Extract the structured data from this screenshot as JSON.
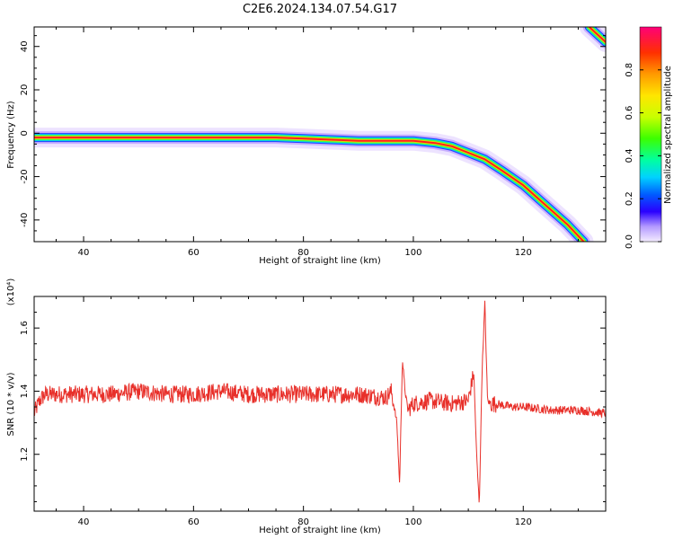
{
  "title": "C2E6.2024.134.07.54.G17",
  "chart_data": [
    {
      "type": "heatmap",
      "xlabel": "Height of straight line (km)",
      "ylabel": "Frequency (Hz)",
      "xlim": [
        31,
        135
      ],
      "ylim": [
        -50,
        49
      ],
      "xticks": [
        40,
        60,
        80,
        100,
        120
      ],
      "yticks": [
        -40,
        -20,
        0,
        20,
        40
      ],
      "ridge": {
        "x": [
          31,
          40,
          50,
          60,
          70,
          75,
          80,
          85,
          90,
          95,
          100,
          104,
          107,
          110,
          113,
          116,
          120,
          124,
          128,
          131
        ],
        "y": [
          -2,
          -2,
          -2,
          -2,
          -2,
          -2,
          -2.5,
          -3,
          -3.5,
          -3.5,
          -3.5,
          -4.5,
          -6,
          -9,
          -12,
          -17,
          -24,
          -33,
          -42,
          -50
        ]
      },
      "ridge2": {
        "x": [
          132,
          135
        ],
        "y": [
          49,
          42
        ]
      },
      "colorbar": {
        "label": "Normalized spectral amplitude",
        "ticks": [
          "0.0",
          "0.2",
          "0.4",
          "0.6",
          "0.8"
        ],
        "range": [
          0,
          1
        ]
      }
    },
    {
      "type": "line",
      "xlabel": "Height of straight line (km)",
      "ylabel": "SNR (10 * v/v)",
      "yscale_label": "(x10⁴)",
      "xlim": [
        31,
        135
      ],
      "ylim": [
        1.02,
        1.7
      ],
      "xticks": [
        40,
        60,
        80,
        100,
        120
      ],
      "yticks": [
        1.2,
        1.4,
        1.6
      ],
      "series": [
        {
          "color": "#e8302a",
          "x": [
            31,
            32,
            33,
            35,
            40,
            45,
            50,
            55,
            60,
            65,
            70,
            75,
            80,
            85,
            90,
            95,
            96,
            97,
            97.5,
            98,
            98.5,
            99,
            100,
            103,
            107,
            110,
            111,
            111.5,
            112,
            112.5,
            113,
            113.5,
            114,
            115,
            118,
            120,
            125,
            130,
            135
          ],
          "y": [
            1.33,
            1.37,
            1.39,
            1.39,
            1.39,
            1.39,
            1.4,
            1.39,
            1.39,
            1.4,
            1.39,
            1.39,
            1.39,
            1.39,
            1.39,
            1.38,
            1.4,
            1.3,
            1.1,
            1.5,
            1.4,
            1.34,
            1.36,
            1.37,
            1.36,
            1.37,
            1.46,
            1.2,
            1.04,
            1.46,
            1.68,
            1.37,
            1.36,
            1.36,
            1.35,
            1.35,
            1.34,
            1.34,
            1.33
          ]
        }
      ]
    }
  ]
}
